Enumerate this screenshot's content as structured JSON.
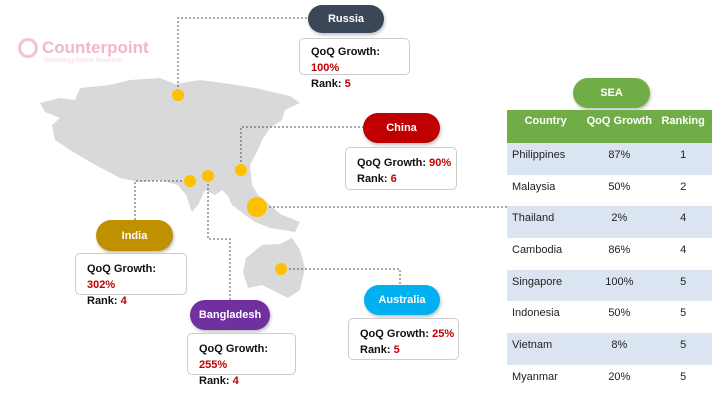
{
  "logo": {
    "name": "Counterpoint",
    "tagline": "Technology Market Research"
  },
  "colors": {
    "russia": "#3b4656",
    "china": "#c00000",
    "india": "#bf9000",
    "bangladesh": "#7030a0",
    "australia": "#00b0f0",
    "sea": "#70ad47",
    "value": "#c00000",
    "marker": "#ffc000",
    "map": "#d9d9d9"
  },
  "growth_label": "QoQ Growth: ",
  "rank_label": "Rank: ",
  "regions": {
    "russia": {
      "name": "Russia",
      "growth": "100%",
      "rank": "5"
    },
    "china": {
      "name": "China",
      "growth": "90%",
      "rank": "6"
    },
    "india": {
      "name": "India",
      "growth": "302%",
      "rank": "4"
    },
    "bangladesh": {
      "name": "Bangladesh",
      "growth": "255%",
      "rank": "4"
    },
    "australia": {
      "name": "Australia",
      "growth": "25%",
      "rank": "5"
    }
  },
  "sea": {
    "title": "SEA",
    "headers": [
      "Country",
      "QoQ Growth",
      "Ranking"
    ],
    "rows": [
      [
        "Philippines",
        "87%",
        "1"
      ],
      [
        "Malaysia",
        "50%",
        "2"
      ],
      [
        "Thailand",
        "2%",
        "4"
      ],
      [
        "Cambodia",
        "86%",
        "4"
      ],
      [
        "Singapore",
        "100%",
        "5"
      ],
      [
        "Indonesia",
        "50%",
        "5"
      ],
      [
        "Vietnam",
        "8%",
        "5"
      ],
      [
        "Myanmar",
        "20%",
        "5"
      ]
    ]
  }
}
